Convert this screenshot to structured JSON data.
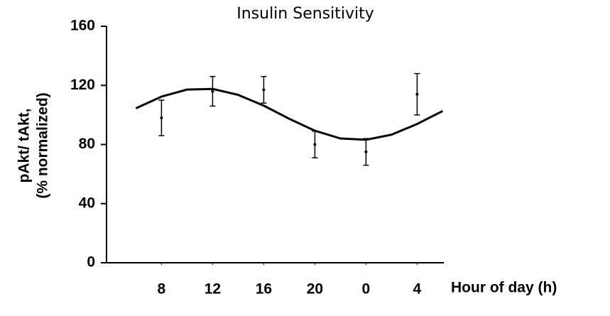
{
  "chart_data": {
    "type": "errorbar",
    "title": "Insulin Sensitivity",
    "ylabel": [
      "pAkt/ tAkt,",
      "(% normalized)"
    ],
    "xlabel": "Hour of day (h)",
    "x": [
      8,
      12,
      16,
      20,
      24,
      28
    ],
    "values": [
      98,
      116,
      117,
      80,
      75,
      114
    ],
    "errors": [
      12,
      10,
      9,
      9,
      9,
      14
    ],
    "color": "#000000",
    "fit": {
      "x": [
        6,
        8,
        10,
        12,
        14,
        16,
        18,
        20,
        22,
        24,
        26,
        28,
        30
      ],
      "values": [
        104.5,
        112.4,
        117.2,
        117.6,
        113.6,
        106.3,
        97.4,
        89.3,
        84.1,
        83.2,
        86.7,
        93.9,
        102.7
      ]
    },
    "xlim": [
      3.7,
      31
    ],
    "xticks": [
      8,
      12,
      16,
      20,
      {
        "value": 24,
        "label": "0"
      },
      {
        "value": 28,
        "label": "4"
      }
    ],
    "ylim": [
      0,
      160
    ],
    "yticks": [
      0,
      40,
      80,
      120,
      160
    ],
    "grid": false
  }
}
